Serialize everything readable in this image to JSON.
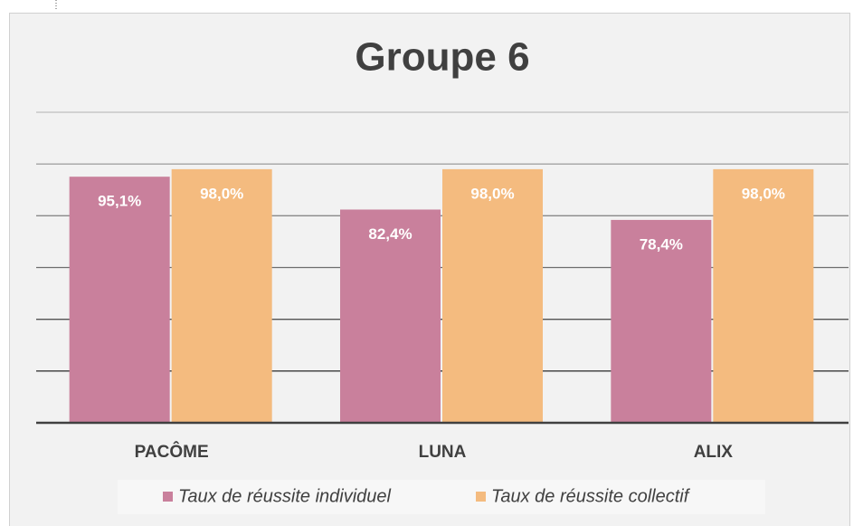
{
  "chart_data": {
    "type": "bar",
    "title": "Groupe 6",
    "categories": [
      "PACÔME",
      "LUNA",
      "ALIX"
    ],
    "series": [
      {
        "name": "Taux de réussite individuel",
        "color": "#c9809c",
        "values": [
          95.1,
          82.4,
          78.4
        ],
        "value_labels": [
          "95,1%",
          "82,4%",
          "78,4%"
        ]
      },
      {
        "name": "Taux de réussite collectif",
        "color": "#f4bb7f",
        "values": [
          98.0,
          98.0,
          98.0
        ],
        "value_labels": [
          "98,0%",
          "98,0%",
          "98,0%"
        ]
      }
    ],
    "ylim": [
      0,
      120
    ],
    "yticks": [
      0,
      20,
      40,
      60,
      80,
      100,
      120
    ],
    "grid": true,
    "legend": "bottom"
  }
}
